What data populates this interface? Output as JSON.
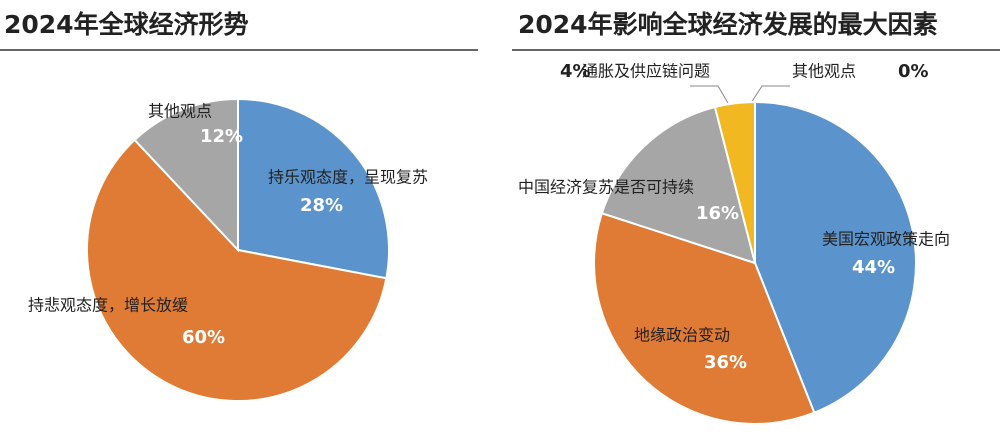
{
  "chart_data": [
    {
      "type": "pie",
      "title": "2024年全球经济形势",
      "categories": [
        "持乐观态度，呈现复苏",
        "持悲观态度，增长放缓",
        "其他观点"
      ],
      "values": [
        28,
        60,
        12
      ],
      "value_labels": [
        "28%",
        "60%",
        "12%"
      ],
      "colors": [
        "#5b93cc",
        "#e07b35",
        "#a6a6a6"
      ]
    },
    {
      "type": "pie",
      "title": "2024年影响全球经济发展的最大因素",
      "categories": [
        "美国宏观政策走向",
        "地缘政治变动",
        "中国经济复苏是否可持续",
        "通胀及供应链问题",
        "其他观点"
      ],
      "values": [
        44,
        36,
        16,
        4,
        0
      ],
      "value_labels": [
        "44%",
        "36%",
        "16%",
        "4%",
        "0%"
      ],
      "colors": [
        "#5b93cc",
        "#e07b35",
        "#a6a6a6",
        "#f2b821",
        "#d9d9d9"
      ]
    }
  ]
}
